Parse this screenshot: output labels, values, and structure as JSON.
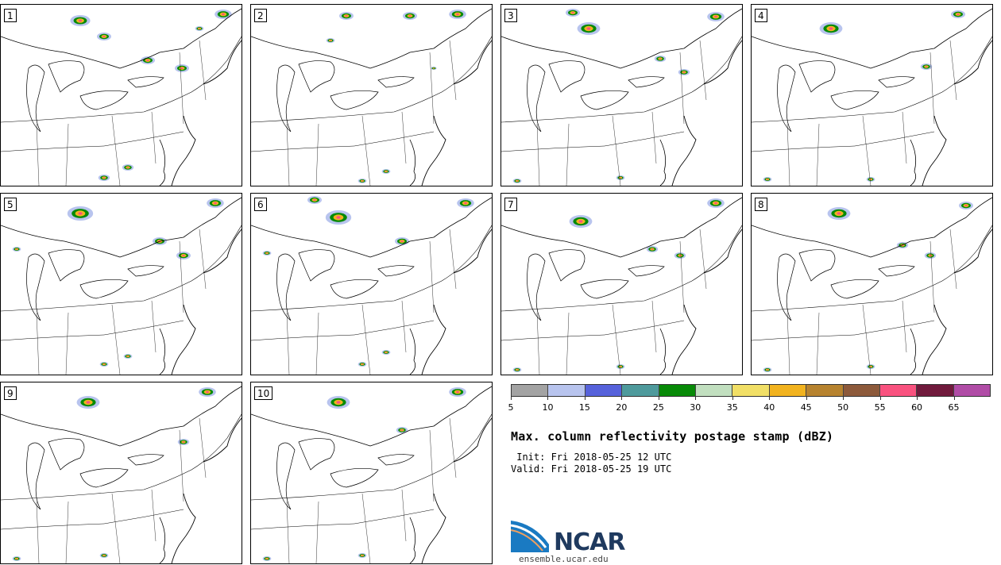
{
  "panels": [
    {
      "label": "1"
    },
    {
      "label": "2"
    },
    {
      "label": "3"
    },
    {
      "label": "4"
    },
    {
      "label": "5"
    },
    {
      "label": "6"
    },
    {
      "label": "7"
    },
    {
      "label": "8"
    },
    {
      "label": "9"
    },
    {
      "label": "10"
    }
  ],
  "colorbar": {
    "colors": [
      "#a3a3a3",
      "#b8c4ee",
      "#5662db",
      "#4e9a9c",
      "#078a07",
      "#c1dfbf",
      "#f1df66",
      "#f2b31f",
      "#b7832f",
      "#8d5a3b",
      "#f9527f",
      "#701a3c",
      "#b04ca6"
    ],
    "ticks": [
      "5",
      "10",
      "15",
      "20",
      "25",
      "30",
      "35",
      "40",
      "45",
      "50",
      "55",
      "60",
      "65"
    ]
  },
  "title": "Max. column reflectivity postage stamp (dBZ)",
  "init": " Init: Fri 2018-05-25 12 UTC",
  "valid": "Valid: Fri 2018-05-25 19 UTC",
  "logo": {
    "text": "NCAR",
    "url": "ensemble.ucar.edu"
  }
}
